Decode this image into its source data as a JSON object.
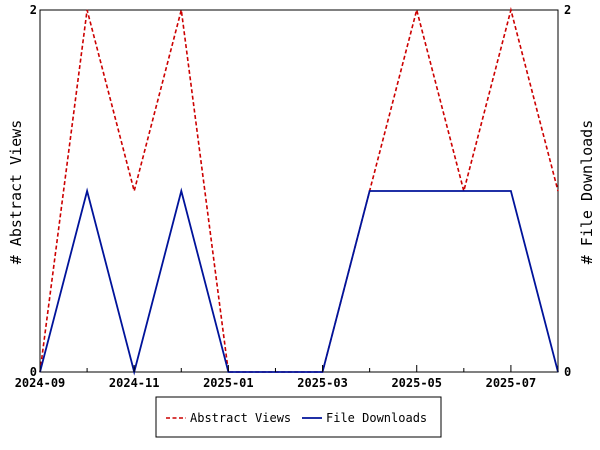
{
  "chart_data": {
    "type": "line",
    "x": [
      "2024-09",
      "2024-10",
      "2024-11",
      "2024-12",
      "2025-01",
      "2025-02",
      "2025-03",
      "2025-04",
      "2025-05",
      "2025-06",
      "2025-07",
      "2025-08"
    ],
    "x_tick_labels": [
      "2024-09",
      "2024-11",
      "2025-01",
      "2025-03",
      "2025-05",
      "2025-07"
    ],
    "ylabel": "# Abstract Views",
    "ylabel_right": "# File Downloads",
    "ylim": [
      0,
      2
    ],
    "y_ticks_left": [
      "0",
      "2"
    ],
    "y_ticks_right": [
      "0",
      "2"
    ],
    "grid": false,
    "legend_position": "bottom-center",
    "series": [
      {
        "name": "Abstract Views",
        "axis": "left",
        "color": "#cc0000",
        "dash": "dashed",
        "values": [
          0,
          2,
          1,
          2,
          0,
          0,
          0,
          1,
          2,
          1,
          2,
          1
        ]
      },
      {
        "name": "File Downloads",
        "axis": "right",
        "color": "#00139a",
        "dash": "solid",
        "values": [
          0,
          1,
          0,
          1,
          0,
          0,
          0,
          1,
          1,
          1,
          1,
          0
        ]
      }
    ]
  }
}
